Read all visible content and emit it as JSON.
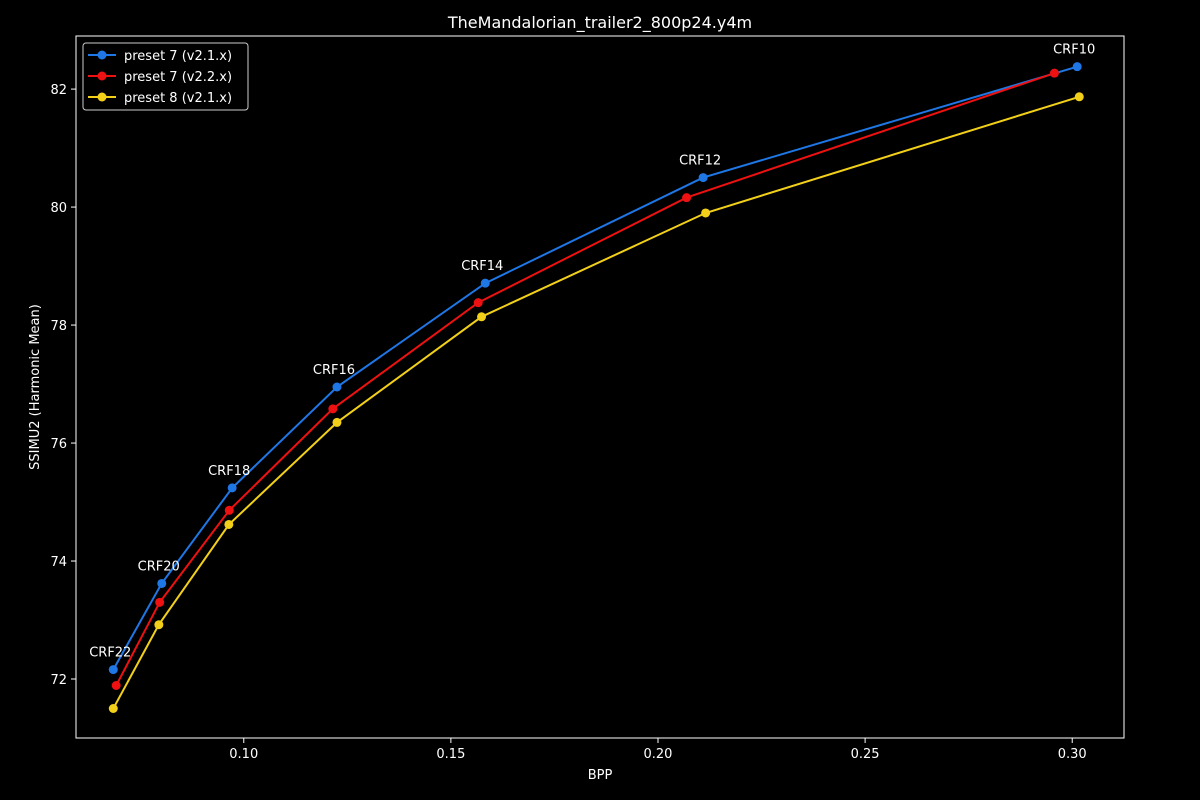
{
  "chart_data": {
    "type": "line",
    "title": "TheMandalorian_trailer2_800p24.y4m",
    "xlabel": "BPP",
    "ylabel": "SSIMU2 (Harmonic Mean)",
    "xlim": [
      0.0595,
      0.3125
    ],
    "ylim": [
      71.0,
      82.9
    ],
    "xticks": [
      0.1,
      0.15,
      0.2,
      0.25,
      0.3
    ],
    "xtick_labels": [
      "0.10",
      "0.15",
      "0.20",
      "0.25",
      "0.30"
    ],
    "yticks": [
      72,
      74,
      76,
      78,
      80,
      82
    ],
    "ytick_labels": [
      "72",
      "74",
      "76",
      "78",
      "80",
      "82"
    ],
    "grid": false,
    "legend_position": "top-left",
    "series": [
      {
        "name": "preset 7 (v2.1.x)",
        "color": "#1f77e6",
        "x": [
          0.0685,
          0.0802,
          0.0972,
          0.1225,
          0.1583,
          0.2109,
          0.3012
        ],
        "y": [
          72.16,
          73.62,
          75.24,
          76.95,
          78.71,
          80.5,
          82.38
        ]
      },
      {
        "name": "preset 7 (v2.2.x)",
        "color": "#ee1111",
        "x": [
          0.0692,
          0.0797,
          0.0965,
          0.1215,
          0.1566,
          0.2069,
          0.2957
        ],
        "y": [
          71.89,
          73.3,
          74.86,
          76.58,
          78.38,
          80.16,
          82.27
        ]
      },
      {
        "name": "preset 8 (v2.1.x)",
        "color": "#f2d01a",
        "x": [
          0.0685,
          0.0795,
          0.0964,
          0.1225,
          0.1574,
          0.2115,
          0.3017
        ],
        "y": [
          71.5,
          72.92,
          74.62,
          76.35,
          78.14,
          79.9,
          81.87
        ]
      }
    ],
    "annotations": [
      {
        "text": "CRF22",
        "x": 0.0685,
        "y": 72.16
      },
      {
        "text": "CRF20",
        "x": 0.0802,
        "y": 73.62
      },
      {
        "text": "CRF18",
        "x": 0.0972,
        "y": 75.24
      },
      {
        "text": "CRF16",
        "x": 0.1225,
        "y": 76.95
      },
      {
        "text": "CRF14",
        "x": 0.1583,
        "y": 78.71
      },
      {
        "text": "CRF12",
        "x": 0.2109,
        "y": 80.5
      },
      {
        "text": "CRF10",
        "x": 0.3012,
        "y": 82.38
      }
    ]
  }
}
